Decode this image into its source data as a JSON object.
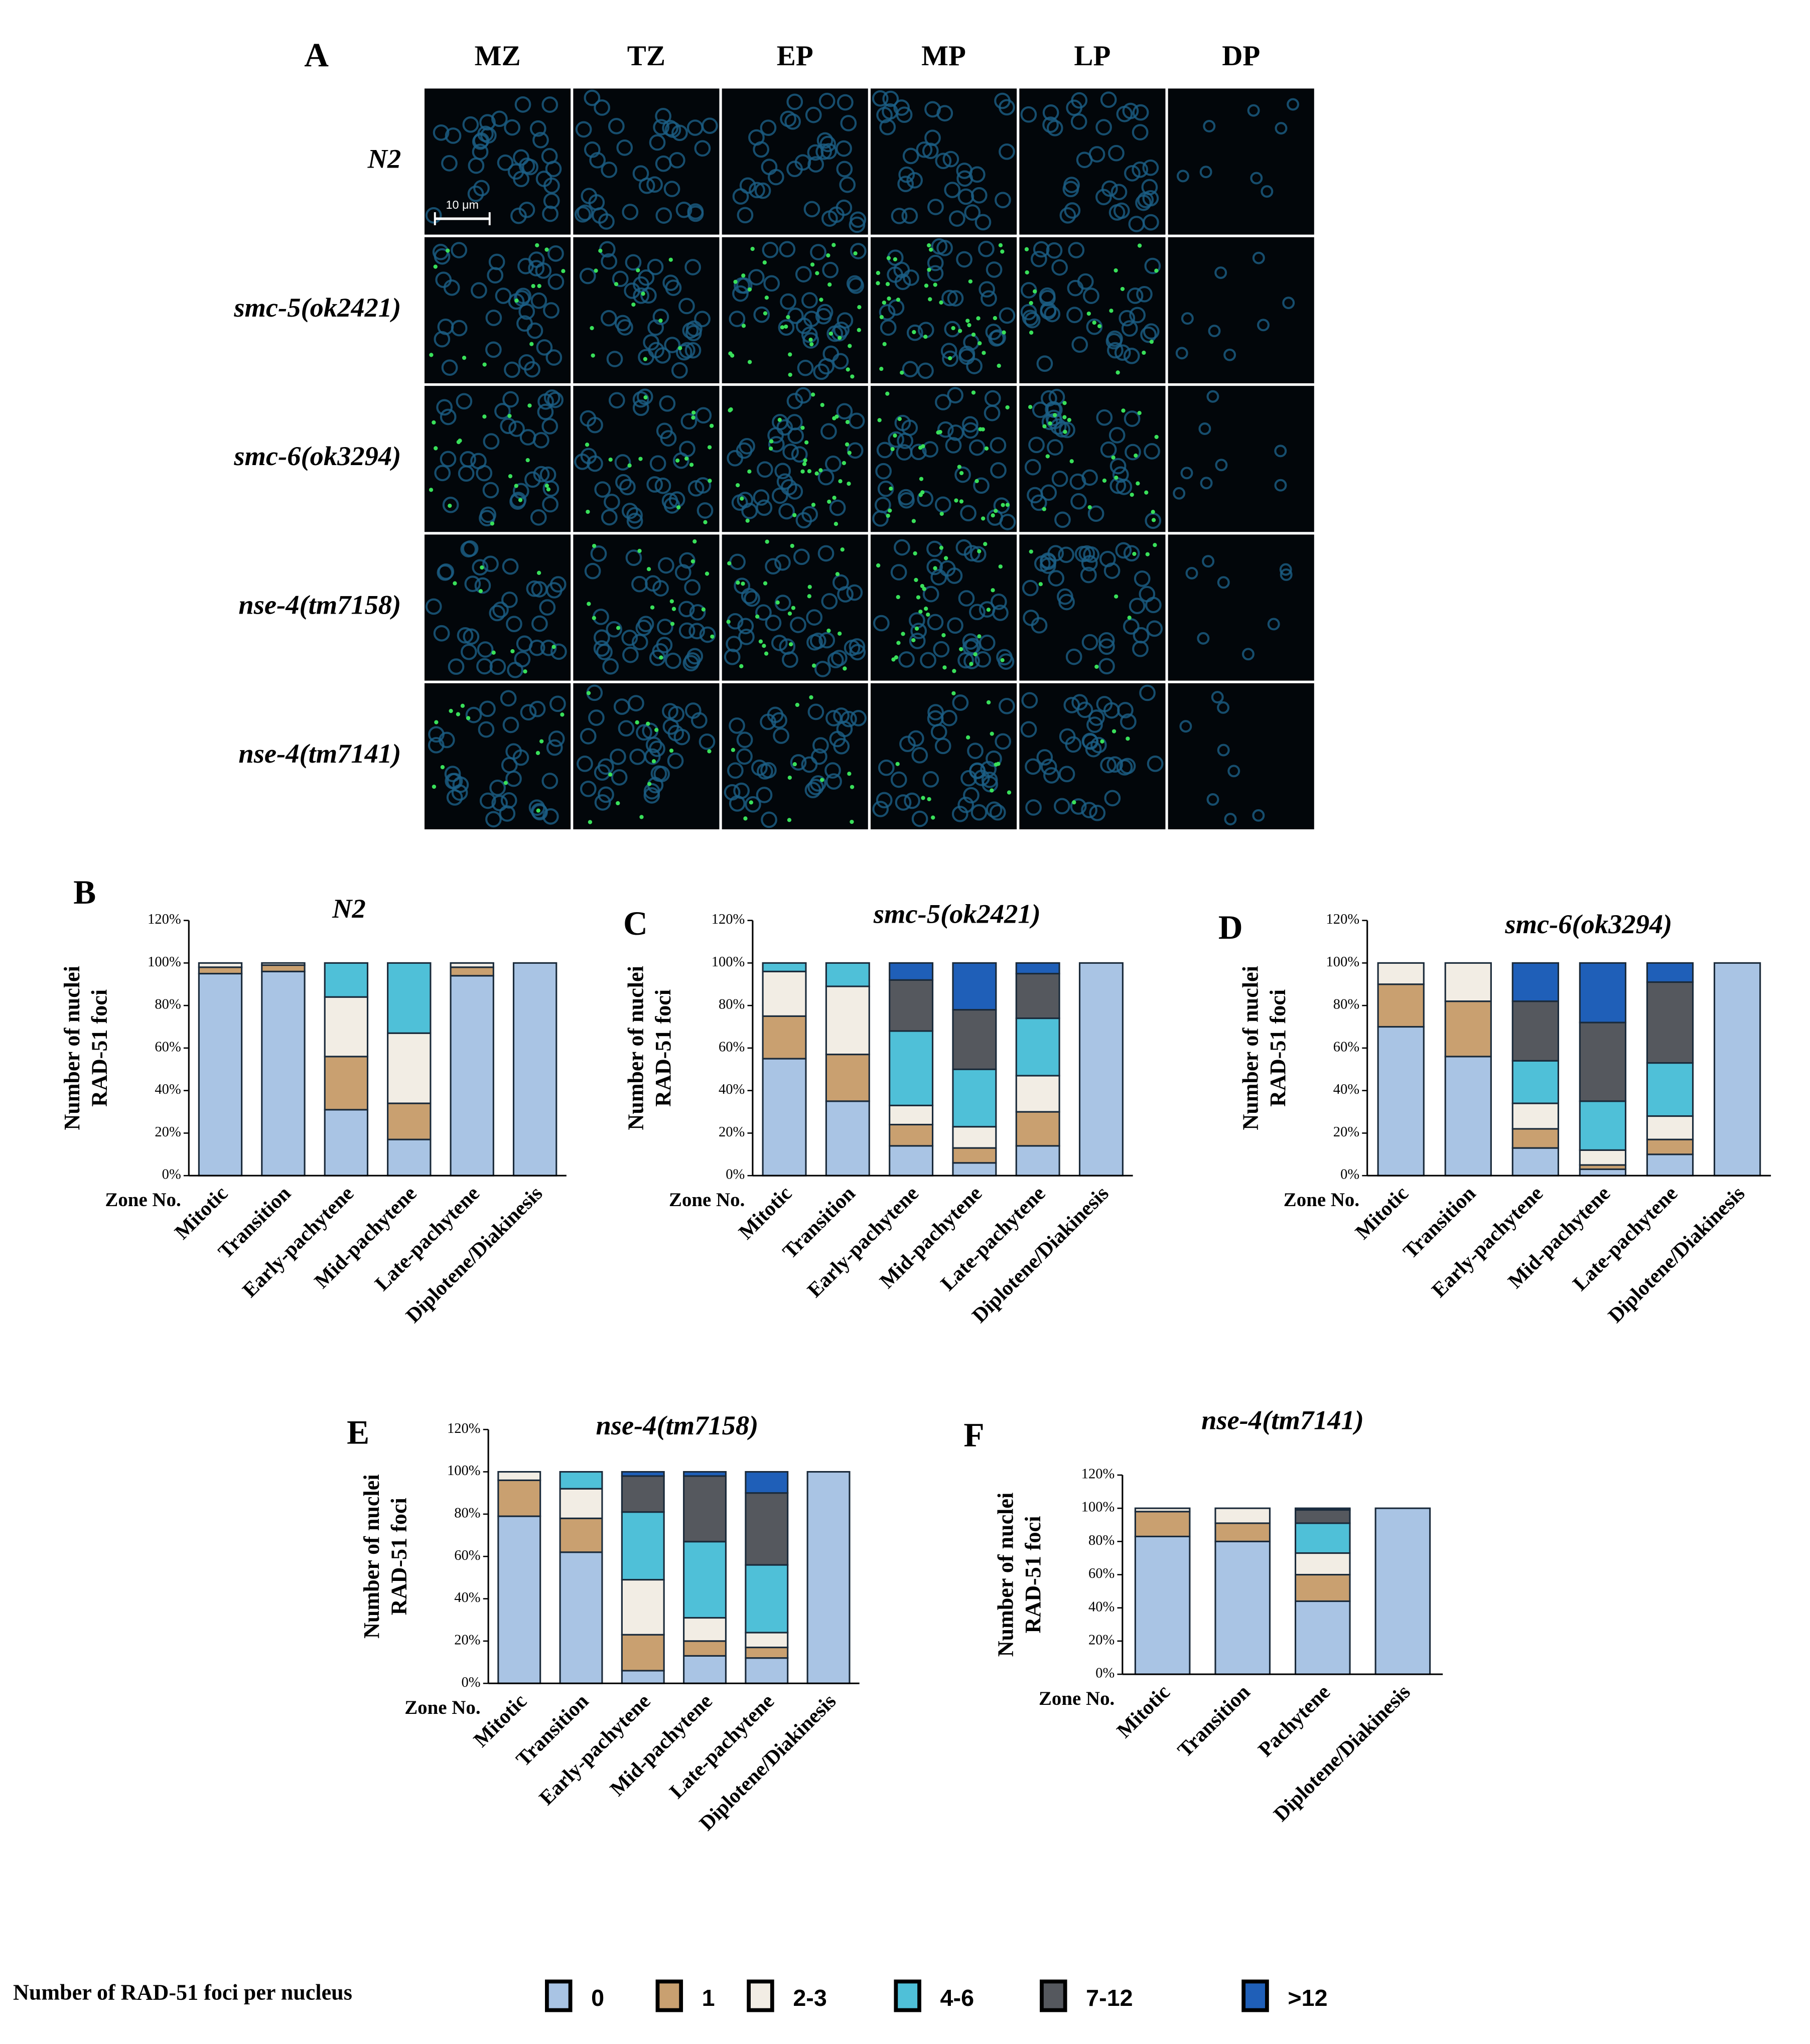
{
  "panel_a": {
    "label": "A",
    "columns": [
      "MZ",
      "TZ",
      "EP",
      "MP",
      "LP",
      "DP"
    ],
    "rows": [
      "N2",
      "smc-5(ok2421)",
      "smc-6(ok3294)",
      "nse-4(tm7158)",
      "nse-4(tm7141)"
    ],
    "scale_bar": "10 μm"
  },
  "legend_title": "Number of RAD-51 foci per nucleus",
  "chart_data": [
    {
      "type": "bar",
      "stacked": true,
      "panel": "B",
      "title": "N2",
      "ylabel": [
        "Number of nuclei",
        "RAD-51 foci"
      ],
      "xlabel": "Zone No.",
      "categories": [
        "Mitotic",
        "Transition",
        "Early-pachytene",
        "Mid-pachytene",
        "Late-pachytene",
        "Diplotene/Diakinesis"
      ],
      "ylim": [
        0,
        120
      ],
      "yticks": [
        {
          "value": 0,
          "label": "0%"
        },
        {
          "value": 20,
          "label": "20%"
        },
        {
          "value": 40,
          "label": "40%"
        },
        {
          "value": 60,
          "label": "60%"
        },
        {
          "value": 80,
          "label": "80%"
        },
        {
          "value": 100,
          "label": "100%"
        },
        {
          "value": 120,
          "label": "120%"
        }
      ],
      "series": [
        {
          "name": "0",
          "color": "#a9c4e4",
          "values": [
            95,
            96,
            31,
            17,
            94,
            100
          ]
        },
        {
          "name": "1",
          "color": "#c9a070",
          "values": [
            3,
            3,
            25,
            17,
            4,
            0
          ]
        },
        {
          "name": "2-3",
          "color": "#f2ede4",
          "values": [
            2,
            1,
            28,
            33,
            2,
            0
          ]
        },
        {
          "name": "4-6",
          "color": "#4fc0d8",
          "values": [
            0,
            0,
            16,
            33,
            0,
            0
          ]
        },
        {
          "name": "7-12",
          "color": "#55585e",
          "values": [
            0,
            0,
            0,
            0,
            0,
            0
          ]
        },
        {
          "name": ">12",
          "color": "#1f5fb8",
          "values": [
            0,
            0,
            0,
            0,
            0,
            0
          ]
        }
      ]
    },
    {
      "type": "bar",
      "stacked": true,
      "panel": "C",
      "title": "smc-5(ok2421)",
      "ylabel": [
        "Number of nuclei",
        "RAD-51 foci"
      ],
      "xlabel": "Zone No.",
      "categories": [
        "Mitotic",
        "Transition",
        "Early-pachytene",
        "Mid-pachytene",
        "Late-pachytene",
        "Diplotene/Diakinesis"
      ],
      "ylim": [
        0,
        120
      ],
      "yticks": [
        {
          "value": 0,
          "label": "0%"
        },
        {
          "value": 20,
          "label": "20%"
        },
        {
          "value": 40,
          "label": "40%"
        },
        {
          "value": 60,
          "label": "60%"
        },
        {
          "value": 80,
          "label": "80%"
        },
        {
          "value": 100,
          "label": "100%"
        },
        {
          "value": 120,
          "label": "120%"
        }
      ],
      "series": [
        {
          "name": "0",
          "color": "#a9c4e4",
          "values": [
            55,
            35,
            14,
            6,
            14,
            100
          ]
        },
        {
          "name": "1",
          "color": "#c9a070",
          "values": [
            20,
            22,
            10,
            7,
            16,
            0
          ]
        },
        {
          "name": "2-3",
          "color": "#f2ede4",
          "values": [
            21,
            32,
            9,
            10,
            17,
            0
          ]
        },
        {
          "name": "4-6",
          "color": "#4fc0d8",
          "values": [
            4,
            11,
            35,
            27,
            27,
            0
          ]
        },
        {
          "name": "7-12",
          "color": "#55585e",
          "values": [
            0,
            0,
            24,
            28,
            21,
            0
          ]
        },
        {
          "name": ">12",
          "color": "#1f5fb8",
          "values": [
            0,
            0,
            8,
            22,
            5,
            0
          ]
        }
      ]
    },
    {
      "type": "bar",
      "stacked": true,
      "panel": "D",
      "title": "smc-6(ok3294)",
      "ylabel": [
        "Number of nuclei",
        "RAD-51 foci"
      ],
      "xlabel": "Zone No.",
      "categories": [
        "Mitotic",
        "Transition",
        "Early-pachytene",
        "Mid-pachytene",
        "Late-pachytene",
        "Diplotene/Diakinesis"
      ],
      "ylim": [
        0,
        120
      ],
      "yticks": [
        {
          "value": 0,
          "label": "0%"
        },
        {
          "value": 20,
          "label": "20%"
        },
        {
          "value": 40,
          "label": "40%"
        },
        {
          "value": 60,
          "label": "60%"
        },
        {
          "value": 80,
          "label": "80%"
        },
        {
          "value": 100,
          "label": "100%"
        },
        {
          "value": 120,
          "label": "120%"
        }
      ],
      "series": [
        {
          "name": "0",
          "color": "#a9c4e4",
          "values": [
            70,
            56,
            13,
            3,
            10,
            100
          ]
        },
        {
          "name": "1",
          "color": "#c9a070",
          "values": [
            20,
            26,
            9,
            2,
            7,
            0
          ]
        },
        {
          "name": "2-3",
          "color": "#f2ede4",
          "values": [
            10,
            18,
            12,
            7,
            11,
            0
          ]
        },
        {
          "name": "4-6",
          "color": "#4fc0d8",
          "values": [
            0,
            0,
            20,
            23,
            25,
            0
          ]
        },
        {
          "name": "7-12",
          "color": "#55585e",
          "values": [
            0,
            0,
            28,
            37,
            38,
            0
          ]
        },
        {
          "name": ">12",
          "color": "#1f5fb8",
          "values": [
            0,
            0,
            18,
            28,
            9,
            0
          ]
        }
      ]
    },
    {
      "type": "bar",
      "stacked": true,
      "panel": "E",
      "title": "nse-4(tm7158)",
      "ylabel": [
        "Number of nuclei",
        "RAD-51 foci"
      ],
      "xlabel": "Zone No.",
      "categories": [
        "Mitotic",
        "Transition",
        "Early-pachytene",
        "Mid-pachytene",
        "Late-pachytene",
        "Diplotene/Diakinesis"
      ],
      "ylim": [
        0,
        120
      ],
      "yticks": [
        {
          "value": 0,
          "label": "0%"
        },
        {
          "value": 20,
          "label": "20%"
        },
        {
          "value": 40,
          "label": "40%"
        },
        {
          "value": 60,
          "label": "60%"
        },
        {
          "value": 80,
          "label": "80%"
        },
        {
          "value": 100,
          "label": "100%"
        },
        {
          "value": 120,
          "label": "120%"
        }
      ],
      "series": [
        {
          "name": "0",
          "color": "#a9c4e4",
          "values": [
            79,
            62,
            6,
            13,
            12,
            100
          ]
        },
        {
          "name": "1",
          "color": "#c9a070",
          "values": [
            17,
            16,
            17,
            7,
            5,
            0
          ]
        },
        {
          "name": "2-3",
          "color": "#f2ede4",
          "values": [
            4,
            14,
            26,
            11,
            7,
            0
          ]
        },
        {
          "name": "4-6",
          "color": "#4fc0d8",
          "values": [
            0,
            8,
            32,
            36,
            32,
            0
          ]
        },
        {
          "name": "7-12",
          "color": "#55585e",
          "values": [
            0,
            0,
            17,
            31,
            34,
            0
          ]
        },
        {
          "name": ">12",
          "color": "#1f5fb8",
          "values": [
            0,
            0,
            2,
            2,
            10,
            0
          ]
        }
      ]
    },
    {
      "type": "bar",
      "stacked": true,
      "panel": "F",
      "title": "nse-4(tm7141)",
      "ylabel": [
        "Number of nuclei",
        "RAD-51 foci"
      ],
      "xlabel": "Zone No.",
      "categories": [
        "Mitotic",
        "Transition",
        "Pachytene",
        "Diplotene/Diakinesis"
      ],
      "ylim": [
        0,
        120
      ],
      "yticks": [
        {
          "value": 0,
          "label": "0%"
        },
        {
          "value": 20,
          "label": "20%"
        },
        {
          "value": 40,
          "label": "40%"
        },
        {
          "value": 60,
          "label": "60%"
        },
        {
          "value": 80,
          "label": "80%"
        },
        {
          "value": 100,
          "label": "100%"
        },
        {
          "value": 120,
          "label": "120%"
        }
      ],
      "series": [
        {
          "name": "0",
          "color": "#a9c4e4",
          "values": [
            83,
            80,
            44,
            100
          ]
        },
        {
          "name": "1",
          "color": "#c9a070",
          "values": [
            15,
            11,
            16,
            0
          ]
        },
        {
          "name": "2-3",
          "color": "#f2ede4",
          "values": [
            2,
            9,
            13,
            0
          ]
        },
        {
          "name": "4-6",
          "color": "#4fc0d8",
          "values": [
            0,
            0,
            18,
            0
          ]
        },
        {
          "name": "7-12",
          "color": "#55585e",
          "values": [
            0,
            0,
            8,
            0
          ]
        },
        {
          "name": ">12",
          "color": "#1f5fb8",
          "values": [
            0,
            0,
            1,
            0
          ]
        }
      ]
    }
  ]
}
